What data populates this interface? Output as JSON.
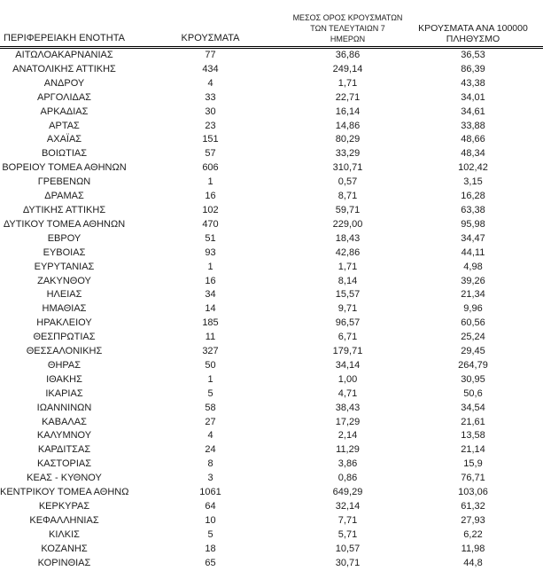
{
  "colors": {
    "background": "#ffffff",
    "text": "#1c1c1c",
    "header_rule": "#000000"
  },
  "table": {
    "header": {
      "col1": "ΠΕΡΙΦΕΡΕΙΑΚΗ ΕΝΟΤΗΤΑ",
      "col2": "ΚΡΟΥΣΜΑΤΑ",
      "col3_line1": "ΜΕΣΟΣ ΟΡΟΣ ΚΡΟΥΣΜΑΤΩΝ",
      "col3_line2": "ΤΩΝ ΤΕΛΕΥΤΑΙΩΝ 7 ΗΜΕΡΩΝ",
      "col4_line1": "ΚΡΟΥΣΜΑΤΑ ΑΝΑ 100000",
      "col4_line2": "ΠΛΗΘΥΣΜΟ"
    },
    "rows": [
      [
        "ΑΙΤΩΛΟΑΚΑΡΝΑΝΙΑΣ",
        "77",
        "36,86",
        "36,53"
      ],
      [
        "ΑΝΑΤΟΛΙΚΗΣ ΑΤΤΙΚΗΣ",
        "434",
        "249,14",
        "86,39"
      ],
      [
        "ΑΝΔΡΟΥ",
        "4",
        "1,71",
        "43,38"
      ],
      [
        "ΑΡΓΟΛΙΔΑΣ",
        "33",
        "22,71",
        "34,01"
      ],
      [
        "ΑΡΚΑΔΙΑΣ",
        "30",
        "16,14",
        "34,61"
      ],
      [
        "ΑΡΤΑΣ",
        "23",
        "14,86",
        "33,88"
      ],
      [
        "ΑΧΑΪΑΣ",
        "151",
        "80,29",
        "48,66"
      ],
      [
        "ΒΟΙΩΤΙΑΣ",
        "57",
        "33,29",
        "48,34"
      ],
      [
        "ΒΟΡΕΙΟΥ ΤΟΜΕΑ ΑΘΗΝΩΝ",
        "606",
        "310,71",
        "102,42"
      ],
      [
        "ΓΡΕΒΕΝΩΝ",
        "1",
        "0,57",
        "3,15"
      ],
      [
        "ΔΡΑΜΑΣ",
        "16",
        "8,71",
        "16,28"
      ],
      [
        "ΔΥΤΙΚΗΣ ΑΤΤΙΚΗΣ",
        "102",
        "59,71",
        "63,38"
      ],
      [
        "ΔΥΤΙΚΟΥ ΤΟΜΕΑ ΑΘΗΝΩΝ",
        "470",
        "229,00",
        "95,98"
      ],
      [
        "ΕΒΡΟΥ",
        "51",
        "18,43",
        "34,47"
      ],
      [
        "ΕΥΒΟΙΑΣ",
        "93",
        "42,86",
        "44,11"
      ],
      [
        "ΕΥΡΥΤΑΝΙΑΣ",
        "1",
        "1,71",
        "4,98"
      ],
      [
        "ΖΑΚΥΝΘΟΥ",
        "16",
        "8,14",
        "39,26"
      ],
      [
        "ΗΛΕΙΑΣ",
        "34",
        "15,57",
        "21,34"
      ],
      [
        "ΗΜΑΘΙΑΣ",
        "14",
        "9,71",
        "9,96"
      ],
      [
        "ΗΡΑΚΛΕΙΟΥ",
        "185",
        "96,57",
        "60,56"
      ],
      [
        "ΘΕΣΠΡΩΤΙΑΣ",
        "11",
        "6,71",
        "25,24"
      ],
      [
        "ΘΕΣΣΑΛΟΝΙΚΗΣ",
        "327",
        "179,71",
        "29,45"
      ],
      [
        "ΘΗΡΑΣ",
        "50",
        "34,14",
        "264,79"
      ],
      [
        "ΙΘΑΚΗΣ",
        "1",
        "1,00",
        "30,95"
      ],
      [
        "ΙΚΑΡΙΑΣ",
        "5",
        "4,71",
        "50,6"
      ],
      [
        "ΙΩΑΝΝΙΝΩΝ",
        "58",
        "38,43",
        "34,54"
      ],
      [
        "ΚΑΒΑΛΑΣ",
        "27",
        "17,29",
        "21,61"
      ],
      [
        "ΚΑΛΥΜΝΟΥ",
        "4",
        "2,14",
        "13,58"
      ],
      [
        "ΚΑΡΔΙΤΣΑΣ",
        "24",
        "11,29",
        "21,14"
      ],
      [
        "ΚΑΣΤΟΡΙΑΣ",
        "8",
        "3,86",
        "15,9"
      ],
      [
        "ΚΕΑΣ - ΚΥΘΝΟΥ",
        "3",
        "0,86",
        "76,71"
      ],
      [
        "ΚΕΝΤΡΙΚΟΥ ΤΟΜΕΑ ΑΘΗΝΩΝ",
        "1061",
        "649,29",
        "103,06"
      ],
      [
        "ΚΕΡΚΥΡΑΣ",
        "64",
        "32,14",
        "61,32"
      ],
      [
        "ΚΕΦΑΛΛΗΝΙΑΣ",
        "10",
        "7,71",
        "27,93"
      ],
      [
        "ΚΙΛΚΙΣ",
        "5",
        "5,71",
        "6,22"
      ],
      [
        "ΚΟΖΑΝΗΣ",
        "18",
        "10,57",
        "11,98"
      ],
      [
        "ΚΟΡΙΝΘΙΑΣ",
        "65",
        "30,71",
        "44,8"
      ]
    ]
  }
}
